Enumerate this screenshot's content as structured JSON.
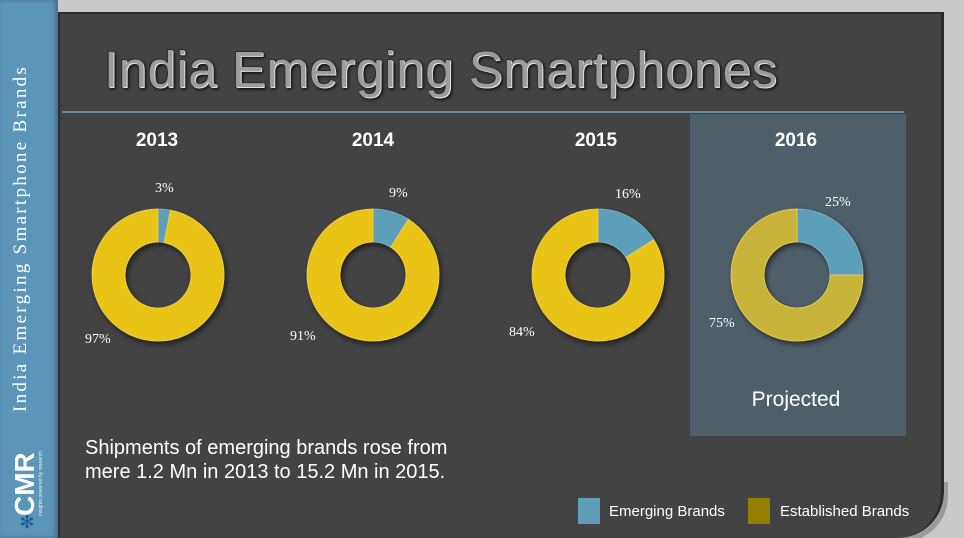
{
  "sidebar": {
    "vertical_title": "India Emerging Smartphone Brands",
    "logo_text": "CMR",
    "logo_tagline": "insights powered by research"
  },
  "title": "India Emerging Smartphones",
  "projected_label": "Projected",
  "summary": {
    "line1": "Shipments of emerging brands rose from",
    "line2": "mere 1.2 Mn in 2013 to 15.2 Mn in 2015."
  },
  "legend": {
    "emerging": "Emerging Brands",
    "established": "Established Brands"
  },
  "colors": {
    "emerging": "#5d9fb8",
    "established": "#e9c418",
    "established_projected": "#c8b33a",
    "swatch_established": "#948000",
    "panel": "#434343",
    "projected_box": "#4f5f6a"
  },
  "chart_data": {
    "type": "pie",
    "variant": "donut",
    "categories": [
      "Emerging Brands",
      "Established Brands"
    ],
    "charts": [
      {
        "year": "2013",
        "values": [
          3,
          97
        ],
        "labels": [
          "3%",
          "97%"
        ]
      },
      {
        "year": "2014",
        "values": [
          9,
          91
        ],
        "labels": [
          "9%",
          "91%"
        ]
      },
      {
        "year": "2015",
        "values": [
          16,
          84
        ],
        "labels": [
          "16%",
          "84%"
        ]
      },
      {
        "year": "2016",
        "values": [
          25,
          75
        ],
        "labels": [
          "25%",
          "75%"
        ],
        "projected": true
      }
    ]
  }
}
